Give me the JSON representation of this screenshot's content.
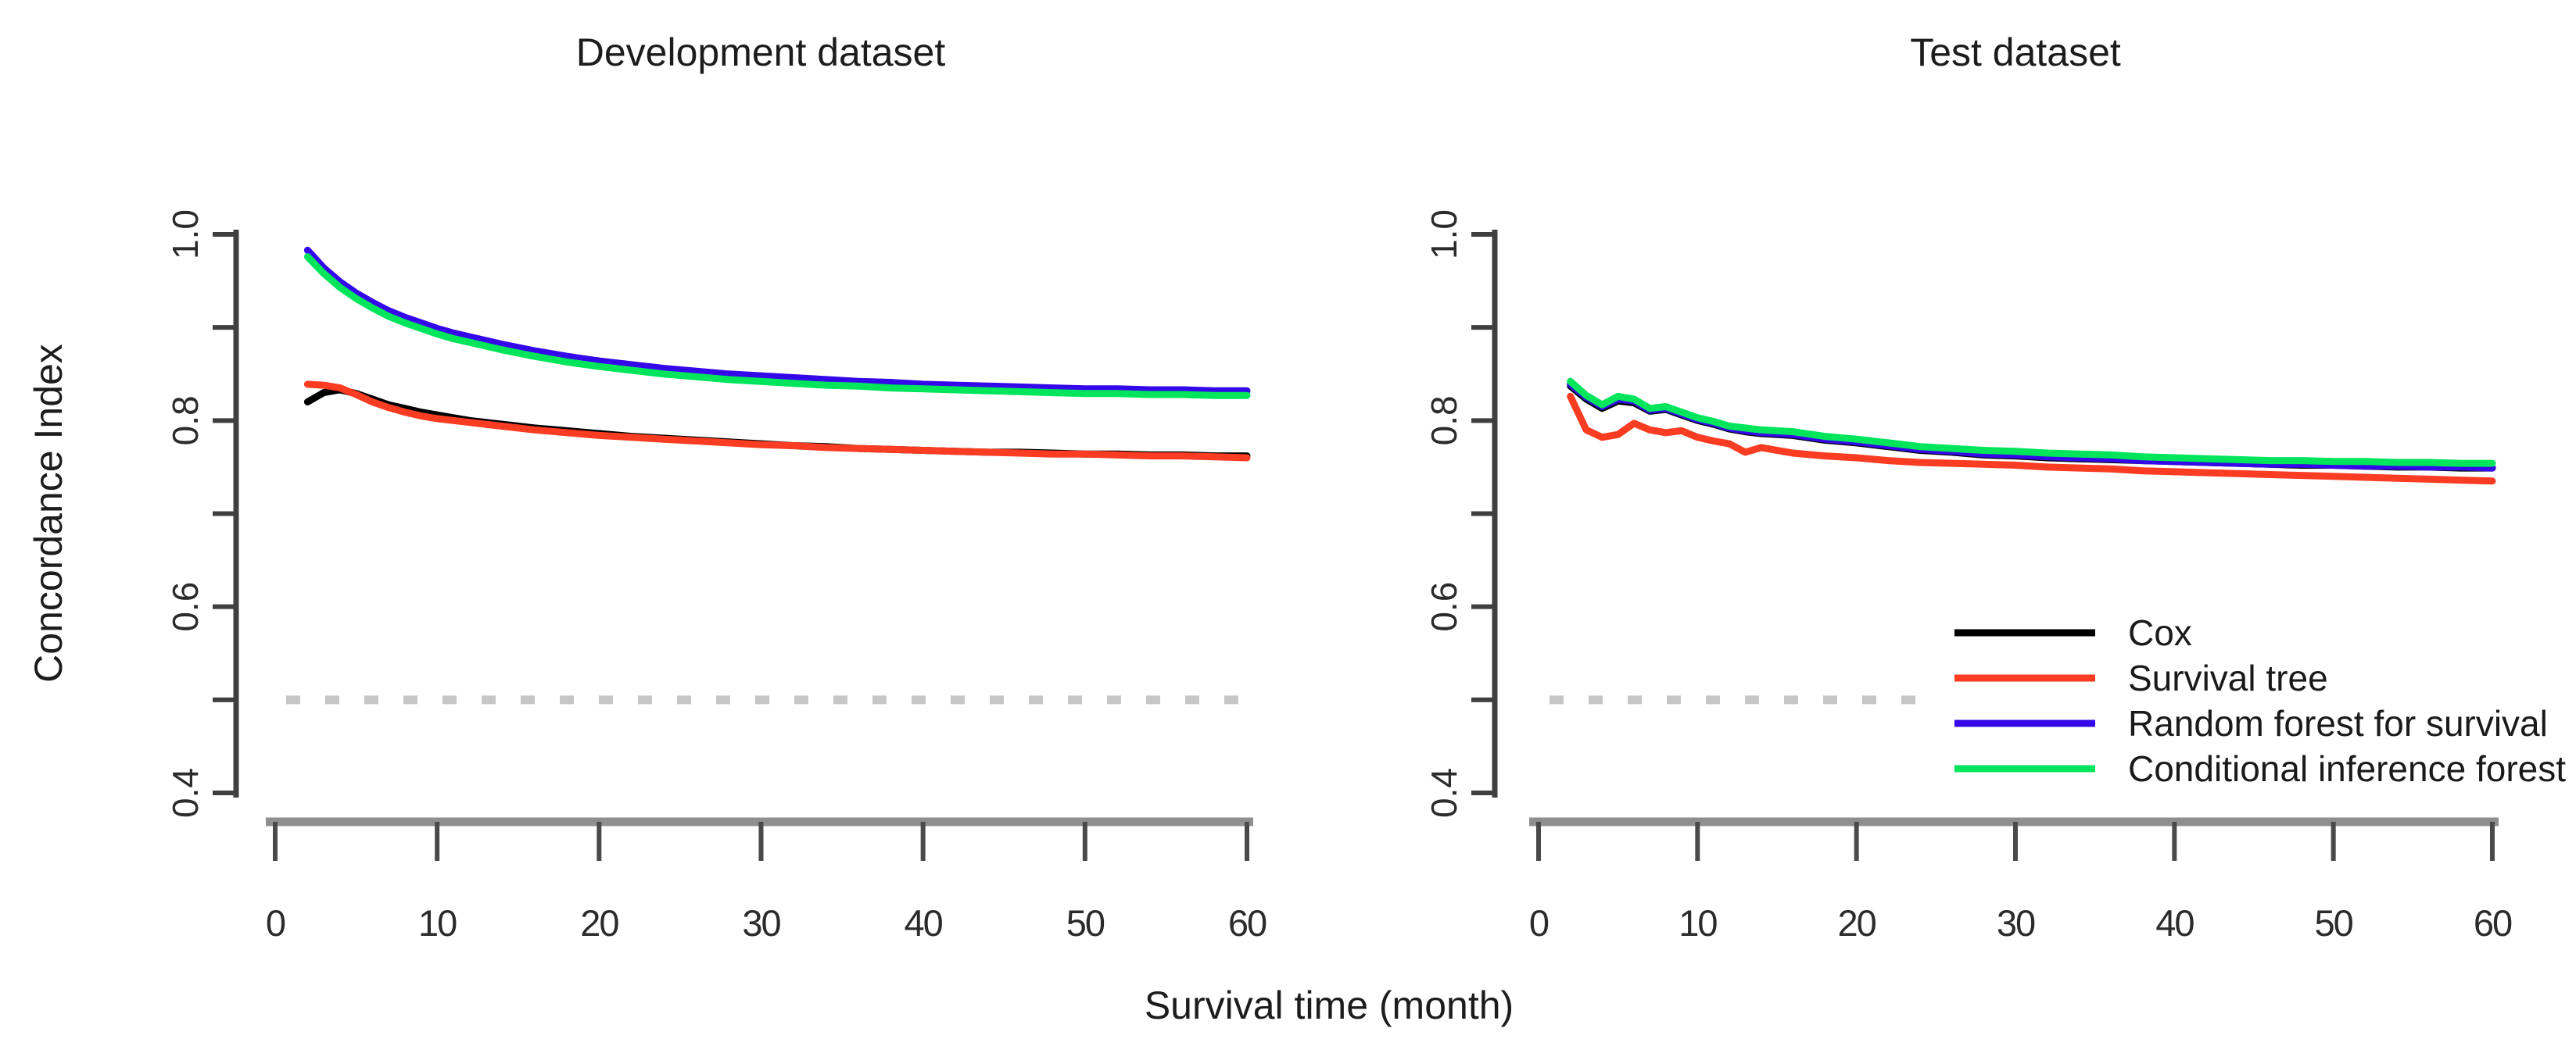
{
  "figure": {
    "background": "#ffffff",
    "shared_xlabel": "Survival time (month)",
    "shared_ylabel": "Concordance Index",
    "colors": {
      "axis_line": "#3f3f3f",
      "x_axis_bar": "#8f8f8f",
      "x_tick": "#4a4a4a",
      "tick_label": "#2b2b2b",
      "reference_dash": "#c6c6c6",
      "legend_text": "#1a1a1a"
    }
  },
  "legend": {
    "location": "inside test panel, lower right",
    "entries": [
      {
        "label": "Cox",
        "color": "#000000"
      },
      {
        "label": "Survival tree",
        "color": "#fa3c23"
      },
      {
        "label": "Random forest for survival",
        "color": "#3408e8"
      },
      {
        "label": "Conditional inference forest",
        "color": "#00e55c"
      }
    ]
  },
  "chart_data": [
    {
      "type": "line",
      "panel": "development",
      "title": "Development dataset",
      "xlabel": "Survival time (month)",
      "ylabel": "Concordance Index",
      "xlim": [
        0,
        60
      ],
      "ylim": [
        0.4,
        1.0
      ],
      "grid": false,
      "xticks": [
        0,
        10,
        20,
        30,
        40,
        50,
        60
      ],
      "yticks": [
        0.4,
        0.5,
        0.6,
        0.7,
        0.8,
        0.9,
        1.0
      ],
      "ytick_labels": [
        "0.4",
        "",
        "0.6",
        "",
        "0.8",
        "",
        "1.0"
      ],
      "reference_line": {
        "y": 0.5,
        "style": "dashed"
      },
      "x": [
        2,
        3,
        4,
        5,
        6,
        7,
        8,
        9,
        10,
        11,
        12,
        13,
        14,
        16,
        18,
        20,
        22,
        24,
        26,
        28,
        30,
        32,
        34,
        36,
        38,
        40,
        42,
        44,
        46,
        48,
        50,
        52,
        54,
        56,
        58,
        60
      ],
      "series": [
        {
          "name": "Cox",
          "color": "#000000",
          "values": [
            0.82,
            0.83,
            0.833,
            0.829,
            0.823,
            0.817,
            0.813,
            0.809,
            0.806,
            0.803,
            0.8,
            0.798,
            0.796,
            0.792,
            0.789,
            0.786,
            0.783,
            0.781,
            0.779,
            0.777,
            0.775,
            0.773,
            0.772,
            0.77,
            0.769,
            0.768,
            0.767,
            0.766,
            0.766,
            0.765,
            0.764,
            0.764,
            0.763,
            0.763,
            0.762,
            0.762
          ]
        },
        {
          "name": "Survival tree",
          "color": "#fa3c23",
          "values": [
            0.839,
            0.838,
            0.835,
            0.828,
            0.82,
            0.814,
            0.809,
            0.805,
            0.802,
            0.8,
            0.798,
            0.796,
            0.794,
            0.79,
            0.787,
            0.784,
            0.782,
            0.78,
            0.778,
            0.776,
            0.774,
            0.773,
            0.771,
            0.77,
            0.769,
            0.768,
            0.767,
            0.766,
            0.765,
            0.764,
            0.764,
            0.763,
            0.762,
            0.762,
            0.761,
            0.76
          ]
        },
        {
          "name": "Random forest for survival",
          "color": "#3408e8",
          "values": [
            0.983,
            0.964,
            0.949,
            0.937,
            0.927,
            0.918,
            0.911,
            0.905,
            0.899,
            0.894,
            0.89,
            0.886,
            0.882,
            0.875,
            0.869,
            0.864,
            0.86,
            0.856,
            0.853,
            0.85,
            0.848,
            0.846,
            0.844,
            0.842,
            0.841,
            0.839,
            0.838,
            0.837,
            0.836,
            0.835,
            0.834,
            0.834,
            0.833,
            0.833,
            0.832,
            0.832
          ]
        },
        {
          "name": "Conditional inference forest",
          "color": "#00e55c",
          "values": [
            0.976,
            0.958,
            0.943,
            0.931,
            0.921,
            0.912,
            0.905,
            0.899,
            0.893,
            0.888,
            0.884,
            0.88,
            0.876,
            0.869,
            0.863,
            0.858,
            0.854,
            0.85,
            0.847,
            0.844,
            0.842,
            0.84,
            0.838,
            0.837,
            0.835,
            0.834,
            0.833,
            0.832,
            0.831,
            0.83,
            0.829,
            0.829,
            0.828,
            0.828,
            0.827,
            0.827
          ]
        }
      ]
    },
    {
      "type": "line",
      "panel": "test",
      "title": "Test dataset",
      "xlabel": "Survival time (month)",
      "ylabel": "Concordance Index",
      "xlim": [
        0,
        60
      ],
      "ylim": [
        0.4,
        1.0
      ],
      "grid": false,
      "xticks": [
        0,
        10,
        20,
        30,
        40,
        50,
        60
      ],
      "yticks": [
        0.4,
        0.5,
        0.6,
        0.7,
        0.8,
        0.9,
        1.0
      ],
      "ytick_labels": [
        "0.4",
        "",
        "0.6",
        "",
        "0.8",
        "",
        "1.0"
      ],
      "reference_line": {
        "y": 0.5,
        "style": "dashed"
      },
      "has_legend": true,
      "x": [
        2,
        3,
        4,
        5,
        6,
        7,
        8,
        9,
        10,
        11,
        12,
        13,
        14,
        16,
        18,
        20,
        22,
        24,
        26,
        28,
        30,
        32,
        34,
        36,
        38,
        40,
        42,
        44,
        46,
        48,
        50,
        52,
        54,
        56,
        58,
        60
      ],
      "series": [
        {
          "name": "Cox",
          "color": "#000000",
          "values": [
            0.837,
            0.823,
            0.813,
            0.821,
            0.819,
            0.81,
            0.812,
            0.806,
            0.8,
            0.796,
            0.791,
            0.788,
            0.786,
            0.784,
            0.779,
            0.776,
            0.772,
            0.768,
            0.766,
            0.763,
            0.762,
            0.76,
            0.759,
            0.758,
            0.757,
            0.756,
            0.755,
            0.754,
            0.753,
            0.752,
            0.752,
            0.751,
            0.75,
            0.75,
            0.749,
            0.749
          ]
        },
        {
          "name": "Survival tree",
          "color": "#fa3c23",
          "values": [
            0.826,
            0.79,
            0.782,
            0.785,
            0.797,
            0.79,
            0.787,
            0.789,
            0.782,
            0.778,
            0.775,
            0.766,
            0.771,
            0.765,
            0.762,
            0.76,
            0.757,
            0.755,
            0.754,
            0.753,
            0.752,
            0.75,
            0.749,
            0.748,
            0.746,
            0.745,
            0.744,
            0.743,
            0.742,
            0.741,
            0.74,
            0.739,
            0.738,
            0.737,
            0.736,
            0.735
          ]
        },
        {
          "name": "Random forest for survival",
          "color": "#3408e8",
          "values": [
            0.839,
            0.825,
            0.815,
            0.823,
            0.821,
            0.811,
            0.813,
            0.807,
            0.801,
            0.797,
            0.792,
            0.789,
            0.787,
            0.785,
            0.78,
            0.777,
            0.773,
            0.769,
            0.767,
            0.764,
            0.763,
            0.761,
            0.76,
            0.759,
            0.757,
            0.756,
            0.755,
            0.754,
            0.753,
            0.753,
            0.752,
            0.751,
            0.751,
            0.75,
            0.75,
            0.749
          ]
        },
        {
          "name": "Conditional inference forest",
          "color": "#00e55c",
          "values": [
            0.842,
            0.827,
            0.817,
            0.826,
            0.823,
            0.813,
            0.815,
            0.809,
            0.803,
            0.799,
            0.794,
            0.792,
            0.79,
            0.788,
            0.783,
            0.78,
            0.776,
            0.772,
            0.77,
            0.768,
            0.767,
            0.765,
            0.764,
            0.763,
            0.761,
            0.76,
            0.759,
            0.758,
            0.757,
            0.757,
            0.756,
            0.756,
            0.755,
            0.755,
            0.754,
            0.754
          ]
        }
      ]
    }
  ]
}
